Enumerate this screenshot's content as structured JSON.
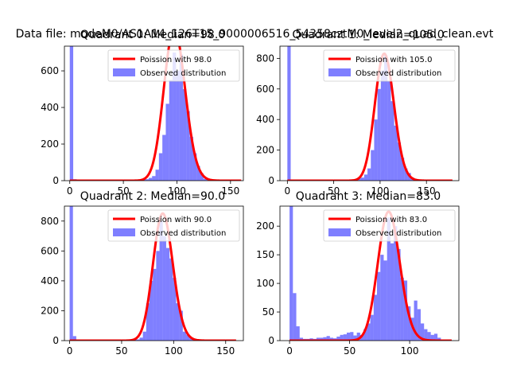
{
  "figure": {
    "suptitle": "Data file: modeM0/AS1A14_126T15_9000006516_54358cztM0_level2_quad_clean.evt"
  },
  "chart_data": [
    {
      "type": "bar",
      "title": "Quadrant 0: Median=98.0",
      "xlim": [
        -5,
        162
      ],
      "ylim": [
        0,
        735
      ],
      "xticks": [
        0,
        50,
        100,
        150
      ],
      "yticks": [
        0,
        200,
        400,
        600
      ],
      "histogram": {
        "label": "Observed distribution",
        "color": "#0000ff",
        "opacity": 0.5,
        "bin_width": 3.2,
        "bins": [
          [
            0,
            735
          ],
          [
            3.2,
            8
          ],
          [
            6.4,
            4
          ],
          [
            9.6,
            3
          ],
          [
            12.8,
            2
          ],
          [
            16,
            2
          ],
          [
            19.2,
            2
          ],
          [
            22.4,
            2
          ],
          [
            25.6,
            1
          ],
          [
            28.8,
            1
          ],
          [
            32,
            2
          ],
          [
            35.2,
            2
          ],
          [
            38.4,
            2
          ],
          [
            41.6,
            2
          ],
          [
            44.8,
            2
          ],
          [
            48,
            2
          ],
          [
            51.2,
            2
          ],
          [
            54.4,
            2
          ],
          [
            57.6,
            3
          ],
          [
            60.8,
            3
          ],
          [
            64,
            4
          ],
          [
            67.2,
            6
          ],
          [
            70.4,
            8
          ],
          [
            73.6,
            15
          ],
          [
            76.8,
            25
          ],
          [
            80,
            60
          ],
          [
            83.2,
            150
          ],
          [
            86.4,
            250
          ],
          [
            89.6,
            420
          ],
          [
            92.8,
            550
          ],
          [
            96,
            700
          ],
          [
            99.2,
            600
          ],
          [
            102.4,
            690
          ],
          [
            105.6,
            500
          ],
          [
            108.8,
            380
          ],
          [
            112,
            240
          ],
          [
            115.2,
            150
          ],
          [
            118.4,
            80
          ],
          [
            121.6,
            40
          ],
          [
            124.8,
            10
          ],
          [
            128,
            4
          ]
        ]
      },
      "model": {
        "label": "Poission with 98.0",
        "color": "#ff0000",
        "lambda": 98.0,
        "scale": 830,
        "x_range": [
          0,
          160
        ]
      }
    },
    {
      "type": "bar",
      "title": "Quadrant 1: Median=105.0",
      "xlim": [
        -8,
        185
      ],
      "ylim": [
        0,
        880
      ],
      "xticks": [
        0,
        50,
        100,
        150
      ],
      "yticks": [
        0,
        200,
        400,
        600,
        800
      ],
      "histogram": {
        "label": "Observed distribution",
        "color": "#0000ff",
        "opacity": 0.5,
        "bin_width": 3.6,
        "bins": [
          [
            0,
            880
          ],
          [
            3.6,
            5
          ],
          [
            7.2,
            3
          ],
          [
            10.8,
            2
          ],
          [
            14.4,
            2
          ],
          [
            18,
            2
          ],
          [
            21.6,
            2
          ],
          [
            25.2,
            2
          ],
          [
            28.8,
            2
          ],
          [
            32.4,
            2
          ],
          [
            36,
            2
          ],
          [
            39.6,
            2
          ],
          [
            43.2,
            2
          ],
          [
            46.8,
            2
          ],
          [
            50.4,
            2
          ],
          [
            54,
            2
          ],
          [
            57.6,
            2
          ],
          [
            61.2,
            3
          ],
          [
            64.8,
            3
          ],
          [
            68.4,
            4
          ],
          [
            72,
            10
          ],
          [
            75.6,
            15
          ],
          [
            79.2,
            20
          ],
          [
            82.8,
            40
          ],
          [
            86.4,
            80
          ],
          [
            90,
            200
          ],
          [
            93.6,
            400
          ],
          [
            97.2,
            600
          ],
          [
            100.8,
            720
          ],
          [
            104.4,
            820
          ],
          [
            108,
            650
          ],
          [
            111.6,
            520
          ],
          [
            115.2,
            360
          ],
          [
            118.8,
            250
          ],
          [
            122.4,
            150
          ],
          [
            126,
            80
          ],
          [
            129.6,
            50
          ],
          [
            133.2,
            20
          ],
          [
            136.8,
            6
          ],
          [
            140.4,
            3
          ]
        ]
      },
      "model": {
        "label": "Poission with 105.0",
        "color": "#ff0000",
        "lambda": 105.0,
        "scale": 830,
        "x_range": [
          0,
          178
        ]
      }
    },
    {
      "type": "bar",
      "title": "Quadrant 2: Median=90.0",
      "xlim": [
        -5,
        167
      ],
      "ylim": [
        0,
        900
      ],
      "xticks": [
        0,
        50,
        100,
        150
      ],
      "yticks": [
        0,
        200,
        400,
        600,
        800
      ],
      "histogram": {
        "label": "Observed distribution",
        "color": "#0000ff",
        "opacity": 0.5,
        "bin_width": 3.2,
        "bins": [
          [
            0,
            900
          ],
          [
            3.2,
            30
          ],
          [
            6.4,
            5
          ],
          [
            9.6,
            3
          ],
          [
            12.8,
            2
          ],
          [
            16,
            2
          ],
          [
            19.2,
            2
          ],
          [
            22.4,
            2
          ],
          [
            25.6,
            2
          ],
          [
            28.8,
            2
          ],
          [
            32,
            2
          ],
          [
            35.2,
            2
          ],
          [
            38.4,
            2
          ],
          [
            41.6,
            2
          ],
          [
            44.8,
            2
          ],
          [
            48,
            2
          ],
          [
            51.2,
            3
          ],
          [
            54.4,
            3
          ],
          [
            57.6,
            5
          ],
          [
            60.8,
            6
          ],
          [
            64,
            8
          ],
          [
            67.2,
            20
          ],
          [
            70.4,
            60
          ],
          [
            73.6,
            250
          ],
          [
            76.8,
            400
          ],
          [
            80,
            480
          ],
          [
            83.2,
            600
          ],
          [
            86.4,
            800
          ],
          [
            89.6,
            700
          ],
          [
            92.8,
            620
          ],
          [
            96,
            550
          ],
          [
            99.2,
            420
          ],
          [
            102.4,
            250
          ],
          [
            105.6,
            200
          ],
          [
            108.8,
            60
          ],
          [
            112,
            40
          ],
          [
            115.2,
            20
          ],
          [
            118.4,
            8
          ],
          [
            121.6,
            4
          ]
        ]
      },
      "model": {
        "label": "Poission with 90.0",
        "color": "#ff0000",
        "lambda": 90.0,
        "scale": 850,
        "x_range": [
          0,
          160
        ]
      }
    },
    {
      "type": "bar",
      "title": "Quadrant 3: Median=83.0",
      "xlim": [
        -8,
        141
      ],
      "ylim": [
        0,
        235
      ],
      "xticks": [
        0,
        50,
        100
      ],
      "yticks": [
        0,
        50,
        100,
        150,
        200
      ],
      "histogram": {
        "label": "Observed distribution",
        "color": "#0000ff",
        "opacity": 0.5,
        "bin_width": 2.8,
        "bins": [
          [
            0,
            235
          ],
          [
            2.8,
            83
          ],
          [
            5.6,
            25
          ],
          [
            8.4,
            5
          ],
          [
            11.2,
            3
          ],
          [
            14,
            3
          ],
          [
            16.8,
            4
          ],
          [
            19.6,
            3
          ],
          [
            22.4,
            5
          ],
          [
            25.2,
            5
          ],
          [
            28,
            6
          ],
          [
            30.8,
            8
          ],
          [
            33.6,
            5
          ],
          [
            36.4,
            4
          ],
          [
            39.2,
            7
          ],
          [
            42,
            10
          ],
          [
            44.8,
            11
          ],
          [
            47.6,
            14
          ],
          [
            50.4,
            15
          ],
          [
            53.2,
            9
          ],
          [
            56,
            14
          ],
          [
            58.8,
            10
          ],
          [
            61.6,
            20
          ],
          [
            64.4,
            30
          ],
          [
            67.2,
            45
          ],
          [
            70,
            80
          ],
          [
            72.8,
            120
          ],
          [
            75.6,
            150
          ],
          [
            78.4,
            140
          ],
          [
            81.2,
            215
          ],
          [
            84,
            170
          ],
          [
            86.8,
            200
          ],
          [
            89.6,
            160
          ],
          [
            92.4,
            110
          ],
          [
            95.2,
            105
          ],
          [
            98,
            60
          ],
          [
            100.8,
            40
          ],
          [
            103.6,
            70
          ],
          [
            106.4,
            55
          ],
          [
            109.2,
            30
          ],
          [
            112,
            20
          ],
          [
            114.8,
            15
          ],
          [
            117.6,
            10
          ],
          [
            120.4,
            12
          ],
          [
            123.2,
            5
          ]
        ]
      },
      "model": {
        "label": "Poission with 83.0",
        "color": "#ff0000",
        "lambda": 83.0,
        "scale": 225,
        "x_range": [
          0,
          135
        ]
      }
    }
  ]
}
